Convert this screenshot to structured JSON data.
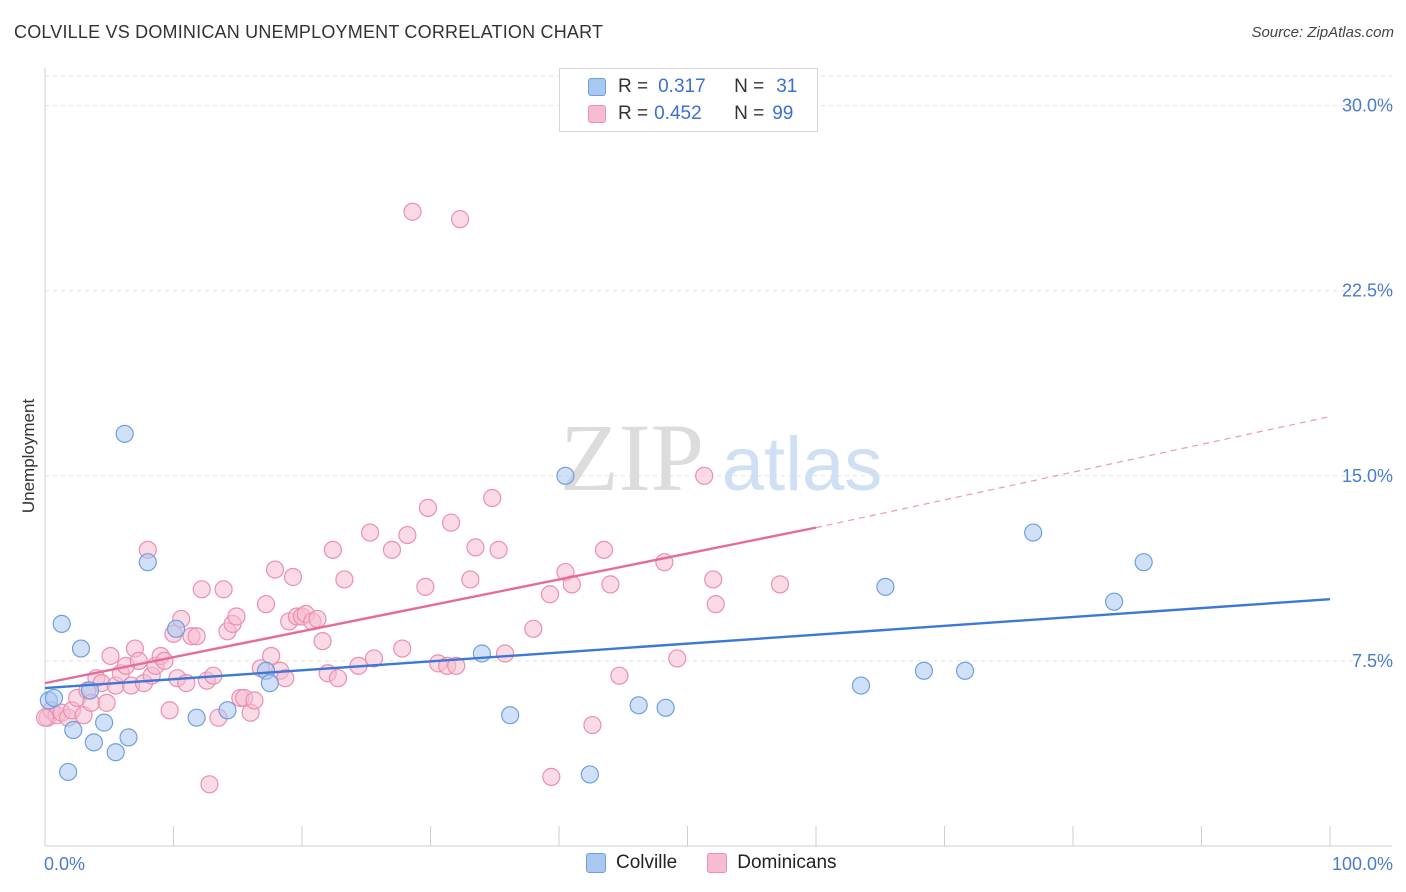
{
  "title": "COLVILLE VS DOMINICAN UNEMPLOYMENT CORRELATION CHART",
  "source": "Source: ZipAtlas.com",
  "watermark": {
    "zip": "ZIP",
    "atlas": "atlas"
  },
  "legend": {
    "rows": [
      {
        "r_label": "R =",
        "r_value": "0.317",
        "n_label": "N =",
        "n_value": "31"
      },
      {
        "r_label": "R =",
        "r_value": "0.452",
        "n_label": "N =",
        "n_value": "99"
      }
    ]
  },
  "bottom_legend": {
    "colville": "Colville",
    "dominicans": "Dominicans"
  },
  "colors": {
    "colville_fill": "#a9c8f0",
    "colville_stroke": "#6f9fe0",
    "colville_line": "#3b78d8",
    "dominican_fill": "#f6bcd0",
    "dominican_stroke": "#ec8fb0",
    "dominican_line": "#e76b98",
    "grid": "#e3e3e3",
    "tick_text": "#4a7bd0"
  },
  "chart_data": {
    "type": "scatter",
    "title": "COLVILLE VS DOMINICAN UNEMPLOYMENT CORRELATION CHART",
    "xlabel": "",
    "ylabel": "Unemployment",
    "xlim": [
      0,
      100
    ],
    "ylim": [
      0,
      31.2
    ],
    "x_tick_labels": [
      {
        "value": 0,
        "label": "0.0%"
      },
      {
        "value": 100,
        "label": "100.0%"
      }
    ],
    "y_tick_labels": [
      {
        "value": 7.5,
        "label": "7.5%"
      },
      {
        "value": 15.0,
        "label": "15.0%"
      },
      {
        "value": 22.5,
        "label": "22.5%"
      },
      {
        "value": 30.0,
        "label": "30.0%"
      }
    ],
    "series": [
      {
        "name": "Colville",
        "R": 0.317,
        "N": 31,
        "trend": {
          "x0": 0,
          "y0": 6.4,
          "x1": 100,
          "y1": 10.0
        },
        "points": [
          [
            0.3,
            5.9
          ],
          [
            0.7,
            6.0
          ],
          [
            1.3,
            9.0
          ],
          [
            1.8,
            3.0
          ],
          [
            2.2,
            4.7
          ],
          [
            2.8,
            8.0
          ],
          [
            3.5,
            6.3
          ],
          [
            3.8,
            4.2
          ],
          [
            4.6,
            5.0
          ],
          [
            5.5,
            3.8
          ],
          [
            6.2,
            16.7
          ],
          [
            6.5,
            4.4
          ],
          [
            8.0,
            11.5
          ],
          [
            10.2,
            8.8
          ],
          [
            11.8,
            5.2
          ],
          [
            14.2,
            5.5
          ],
          [
            17.2,
            7.1
          ],
          [
            17.5,
            6.6
          ],
          [
            34.0,
            7.8
          ],
          [
            36.2,
            5.3
          ],
          [
            40.5,
            15.0
          ],
          [
            42.4,
            2.9
          ],
          [
            46.2,
            5.7
          ],
          [
            48.3,
            5.6
          ],
          [
            63.5,
            6.5
          ],
          [
            65.4,
            10.5
          ],
          [
            68.4,
            7.1
          ],
          [
            71.6,
            7.1
          ],
          [
            76.9,
            12.7
          ],
          [
            83.2,
            9.9
          ],
          [
            85.5,
            11.5
          ]
        ]
      },
      {
        "name": "Dominicans",
        "R": 0.452,
        "N": 99,
        "trend": {
          "x0": 0,
          "y0": 6.6,
          "x1": 60,
          "y1": 12.9
        },
        "trend_dashed": {
          "x0": 60,
          "y0": 12.9,
          "x1": 100,
          "y1": 17.4
        },
        "points": [
          [
            0.2,
            5.2
          ],
          [
            0.5,
            5.5
          ],
          [
            0.9,
            5.3
          ],
          [
            1.3,
            5.4
          ],
          [
            1.8,
            5.2
          ],
          [
            2.1,
            5.5
          ],
          [
            2.5,
            6.0
          ],
          [
            3.0,
            5.3
          ],
          [
            3.3,
            6.3
          ],
          [
            3.6,
            5.8
          ],
          [
            4.0,
            6.8
          ],
          [
            4.4,
            6.6
          ],
          [
            4.8,
            5.8
          ],
          [
            5.1,
            7.7
          ],
          [
            5.5,
            6.5
          ],
          [
            5.9,
            7.0
          ],
          [
            6.3,
            7.3
          ],
          [
            6.7,
            6.5
          ],
          [
            7.0,
            8.0
          ],
          [
            7.3,
            7.5
          ],
          [
            7.7,
            6.6
          ],
          [
            8.0,
            12.0
          ],
          [
            8.3,
            6.9
          ],
          [
            8.6,
            7.3
          ],
          [
            9.0,
            7.7
          ],
          [
            9.3,
            7.5
          ],
          [
            9.7,
            5.5
          ],
          [
            10.0,
            8.6
          ],
          [
            10.3,
            6.8
          ],
          [
            10.6,
            9.2
          ],
          [
            11.0,
            6.6
          ],
          [
            11.4,
            8.5
          ],
          [
            11.8,
            8.5
          ],
          [
            12.2,
            10.4
          ],
          [
            12.6,
            6.7
          ],
          [
            12.8,
            2.5
          ],
          [
            13.1,
            6.9
          ],
          [
            13.5,
            5.2
          ],
          [
            13.9,
            10.4
          ],
          [
            14.2,
            8.7
          ],
          [
            14.6,
            9.0
          ],
          [
            14.9,
            9.3
          ],
          [
            15.2,
            6.0
          ],
          [
            15.5,
            6.0
          ],
          [
            16.0,
            5.4
          ],
          [
            16.3,
            5.9
          ],
          [
            16.8,
            7.2
          ],
          [
            17.2,
            9.8
          ],
          [
            17.6,
            7.7
          ],
          [
            17.9,
            11.2
          ],
          [
            18.3,
            7.1
          ],
          [
            18.7,
            6.8
          ],
          [
            19.0,
            9.1
          ],
          [
            19.3,
            10.9
          ],
          [
            19.6,
            9.3
          ],
          [
            20.0,
            9.3
          ],
          [
            20.3,
            9.4
          ],
          [
            20.8,
            9.1
          ],
          [
            21.2,
            9.2
          ],
          [
            21.6,
            8.3
          ],
          [
            22.0,
            7.0
          ],
          [
            22.4,
            12.0
          ],
          [
            22.8,
            6.8
          ],
          [
            23.3,
            10.8
          ],
          [
            24.4,
            7.3
          ],
          [
            25.3,
            12.7
          ],
          [
            25.6,
            7.6
          ],
          [
            27.0,
            12.0
          ],
          [
            27.8,
            8.0
          ],
          [
            28.2,
            12.6
          ],
          [
            28.6,
            25.7
          ],
          [
            29.6,
            10.5
          ],
          [
            29.8,
            13.7
          ],
          [
            30.6,
            7.4
          ],
          [
            31.3,
            7.3
          ],
          [
            31.6,
            13.1
          ],
          [
            32.0,
            7.3
          ],
          [
            32.3,
            25.4
          ],
          [
            33.1,
            10.8
          ],
          [
            33.5,
            12.1
          ],
          [
            34.8,
            14.1
          ],
          [
            35.3,
            12.0
          ],
          [
            35.8,
            7.8
          ],
          [
            38.0,
            8.8
          ],
          [
            39.3,
            10.2
          ],
          [
            39.4,
            2.8
          ],
          [
            40.5,
            11.1
          ],
          [
            41.0,
            10.6
          ],
          [
            42.6,
            4.9
          ],
          [
            43.5,
            12.0
          ],
          [
            44.0,
            10.6
          ],
          [
            44.7,
            6.9
          ],
          [
            48.2,
            11.5
          ],
          [
            49.2,
            7.6
          ],
          [
            51.3,
            15.0
          ],
          [
            52.0,
            10.8
          ],
          [
            52.2,
            9.8
          ],
          [
            57.2,
            10.6
          ],
          [
            0.0,
            5.2
          ]
        ]
      }
    ]
  }
}
